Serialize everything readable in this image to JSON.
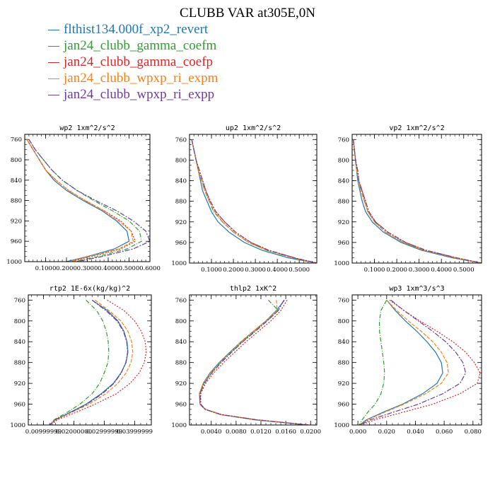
{
  "figure": {
    "title": "CLUBB VAR at305E,0N"
  },
  "series": [
    {
      "name": "flthist134.000f_xp2_revert",
      "color": "#1f77b4",
      "dash": ""
    },
    {
      "name": "jan24_clubb_gamma_coefm",
      "color": "#2ca02c",
      "dash": "6,2,1,2"
    },
    {
      "name": "jan24_clubb_gamma_coefp",
      "color": "#d62728",
      "dash": "2,2"
    },
    {
      "name": "jan24_clubb_wpxp_ri_expm",
      "color": "#ff7f0e",
      "dash": "5,2"
    },
    {
      "name": "jan24_clubb_wpxp_ri_expp",
      "color": "#6a3d9a",
      "dash": "7,2,2,2"
    }
  ],
  "chart_data": [
    {
      "type": "line",
      "title": "wp2  1xm^2/s^2",
      "xlim": [
        0,
        0.6
      ],
      "ylim": [
        750,
        1000
      ],
      "xticks": [
        0.1,
        0.2,
        0.3,
        0.4,
        0.5,
        0.6
      ],
      "xtick_labels": [
        "0.1000",
        "0.2000",
        "0.3000",
        "0.4000",
        "0.5000",
        "0.6000"
      ],
      "yticks": [
        760,
        800,
        840,
        880,
        920,
        960,
        1000
      ],
      "y": [
        760,
        780,
        800,
        820,
        840,
        860,
        880,
        900,
        920,
        940,
        960,
        975,
        990,
        1000
      ],
      "series_x": [
        [
          0.01,
          0.04,
          0.07,
          0.1,
          0.14,
          0.2,
          0.28,
          0.37,
          0.44,
          0.49,
          0.5,
          0.43,
          0.3,
          0.2
        ],
        [
          0.02,
          0.05,
          0.09,
          0.13,
          0.18,
          0.25,
          0.33,
          0.42,
          0.5,
          0.55,
          0.56,
          0.49,
          0.35,
          0.24
        ],
        [
          0.01,
          0.04,
          0.07,
          0.1,
          0.15,
          0.21,
          0.29,
          0.38,
          0.46,
          0.51,
          0.53,
          0.46,
          0.32,
          0.22
        ],
        [
          0.01,
          0.04,
          0.07,
          0.1,
          0.15,
          0.21,
          0.29,
          0.38,
          0.45,
          0.51,
          0.52,
          0.45,
          0.31,
          0.21
        ],
        [
          0.02,
          0.05,
          0.09,
          0.13,
          0.18,
          0.25,
          0.34,
          0.44,
          0.52,
          0.58,
          0.6,
          0.52,
          0.37,
          0.25
        ]
      ]
    },
    {
      "type": "line",
      "title": "up2  1xm^2/s^2",
      "xlim": [
        0,
        0.58
      ],
      "ylim": [
        750,
        1000
      ],
      "xticks": [
        0.1,
        0.2,
        0.3,
        0.4,
        0.5
      ],
      "xtick_labels": [
        "0.1000",
        "0.2000",
        "0.3000",
        "0.4000",
        "0.5000"
      ],
      "yticks": [
        760,
        800,
        840,
        880,
        920,
        960,
        1000
      ],
      "y": [
        760,
        780,
        800,
        820,
        840,
        860,
        880,
        900,
        920,
        940,
        960,
        975,
        990,
        1000
      ],
      "series_x": [
        [
          0.01,
          0.02,
          0.03,
          0.04,
          0.05,
          0.06,
          0.08,
          0.1,
          0.13,
          0.18,
          0.25,
          0.33,
          0.45,
          0.58
        ],
        [
          0.01,
          0.02,
          0.03,
          0.04,
          0.055,
          0.07,
          0.09,
          0.11,
          0.15,
          0.2,
          0.27,
          0.35,
          0.47,
          0.58
        ],
        [
          0.01,
          0.02,
          0.03,
          0.045,
          0.06,
          0.075,
          0.095,
          0.12,
          0.16,
          0.21,
          0.28,
          0.36,
          0.48,
          0.58
        ],
        [
          0.01,
          0.02,
          0.03,
          0.04,
          0.055,
          0.07,
          0.09,
          0.115,
          0.15,
          0.2,
          0.27,
          0.35,
          0.47,
          0.58
        ],
        [
          0.01,
          0.02,
          0.03,
          0.045,
          0.06,
          0.075,
          0.095,
          0.12,
          0.16,
          0.21,
          0.28,
          0.36,
          0.48,
          0.58
        ]
      ]
    },
    {
      "type": "line",
      "title": "vp2  1xm^2/s^2",
      "xlim": [
        0,
        0.58
      ],
      "ylim": [
        750,
        1000
      ],
      "xticks": [
        0.1,
        0.2,
        0.3,
        0.4,
        0.5
      ],
      "xtick_labels": [
        "0.1000",
        "0.2000",
        "0.3000",
        "0.4000",
        "0.5000"
      ],
      "yticks": [
        760,
        800,
        840,
        880,
        920,
        960,
        1000
      ],
      "y": [
        760,
        780,
        800,
        820,
        840,
        860,
        880,
        900,
        920,
        940,
        960,
        975,
        990,
        1000
      ],
      "series_x": [
        [
          0.005,
          0.01,
          0.015,
          0.02,
          0.025,
          0.035,
          0.045,
          0.06,
          0.09,
          0.14,
          0.22,
          0.31,
          0.45,
          0.58
        ],
        [
          0.005,
          0.01,
          0.015,
          0.02,
          0.03,
          0.04,
          0.055,
          0.07,
          0.1,
          0.15,
          0.23,
          0.32,
          0.46,
          0.58
        ],
        [
          0.005,
          0.01,
          0.015,
          0.025,
          0.03,
          0.045,
          0.06,
          0.075,
          0.105,
          0.16,
          0.24,
          0.33,
          0.47,
          0.58
        ],
        [
          0.005,
          0.01,
          0.015,
          0.02,
          0.03,
          0.04,
          0.055,
          0.07,
          0.1,
          0.15,
          0.23,
          0.32,
          0.46,
          0.58
        ],
        [
          0.005,
          0.01,
          0.015,
          0.025,
          0.03,
          0.045,
          0.06,
          0.075,
          0.105,
          0.16,
          0.24,
          0.33,
          0.47,
          0.58
        ]
      ]
    },
    {
      "type": "line",
      "title": "rtp2  1E-6x(kg/kg)^2",
      "xlim": [
        5e-06,
        4.55e-05
      ],
      "ylim": [
        750,
        1000
      ],
      "xticks": [
        1e-05,
        2e-05,
        3e-05,
        4e-05
      ],
      "xtick_labels": [
        "0.00999999",
        "0.02000000",
        "0.02999999",
        "0.03999999"
      ],
      "yticks": [
        760,
        800,
        840,
        880,
        920,
        960,
        1000
      ],
      "y": [
        760,
        780,
        800,
        820,
        840,
        860,
        880,
        900,
        920,
        940,
        960,
        975,
        990,
        1000
      ],
      "series_x": [
        [
          2.6e-05,
          3.1e-05,
          3.45e-05,
          3.65e-05,
          3.75e-05,
          3.78e-05,
          3.72e-05,
          3.55e-05,
          3.3e-05,
          2.9e-05,
          2.4e-05,
          1.9e-05,
          1.4e-05,
          1.2e-05
        ],
        [
          2.4e-05,
          2.75e-05,
          2.95e-05,
          3.07e-05,
          3.13e-05,
          3.15e-05,
          3.12e-05,
          3e-05,
          2.85e-05,
          2.6e-05,
          2.2e-05,
          1.8e-05,
          1.35e-05,
          1.2e-05
        ],
        [
          3.1e-05,
          3.65e-05,
          4e-05,
          4.22e-05,
          4.35e-05,
          4.38e-05,
          4.32e-05,
          4.15e-05,
          3.85e-05,
          3.4e-05,
          2.7e-05,
          2.1e-05,
          1.45e-05,
          1.25e-05
        ],
        [
          2.7e-05,
          3.15e-05,
          3.55e-05,
          3.78e-05,
          3.9e-05,
          3.94e-05,
          3.88e-05,
          3.72e-05,
          3.45e-05,
          3.05e-05,
          2.5e-05,
          1.95e-05,
          1.4e-05,
          1.2e-05
        ],
        [
          2.6e-05,
          3.05e-05,
          3.42e-05,
          3.63e-05,
          3.74e-05,
          3.77e-05,
          3.71e-05,
          3.56e-05,
          3.32e-05,
          2.94e-05,
          2.43e-05,
          1.92e-05,
          1.38e-05,
          1.2e-05
        ]
      ]
    },
    {
      "type": "line",
      "title": "thlp2  1xK^2",
      "xlim": [
        0.0005,
        0.021
      ],
      "ylim": [
        750,
        1000
      ],
      "xticks": [
        0.004,
        0.008,
        0.012,
        0.016,
        0.02
      ],
      "xtick_labels": [
        "0.0040",
        "0.0080",
        "0.0120",
        "0.0160",
        "0.0200"
      ],
      "yticks": [
        760,
        800,
        840,
        880,
        920,
        960,
        1000
      ],
      "y": [
        760,
        780,
        800,
        820,
        840,
        860,
        880,
        900,
        920,
        940,
        960,
        970,
        980,
        990,
        1000
      ],
      "series_x": [
        [
          0.0158,
          0.0145,
          0.0128,
          0.0108,
          0.0088,
          0.007,
          0.0053,
          0.0038,
          0.0027,
          0.0021,
          0.0022,
          0.003,
          0.0055,
          0.011,
          0.0195
        ],
        [
          0.0132,
          0.0148,
          0.013,
          0.011,
          0.009,
          0.0072,
          0.0055,
          0.004,
          0.0028,
          0.0022,
          0.0023,
          0.0031,
          0.0056,
          0.0112,
          0.0196
        ],
        [
          0.0162,
          0.0152,
          0.0136,
          0.0116,
          0.0096,
          0.0078,
          0.006,
          0.0044,
          0.0031,
          0.0023,
          0.0023,
          0.0031,
          0.0057,
          0.0114,
          0.0198
        ],
        [
          0.0145,
          0.0146,
          0.0128,
          0.0108,
          0.0088,
          0.0071,
          0.0054,
          0.0039,
          0.0027,
          0.0021,
          0.0022,
          0.003,
          0.0055,
          0.011,
          0.0195
        ],
        [
          0.0157,
          0.0148,
          0.013,
          0.0111,
          0.0091,
          0.0073,
          0.0056,
          0.0041,
          0.0029,
          0.0022,
          0.0022,
          0.003,
          0.0056,
          0.0112,
          0.0196
        ]
      ]
    },
    {
      "type": "line",
      "title": "wp3  1xm^3/s^3",
      "xlim": [
        -0.004,
        0.086
      ],
      "ylim": [
        750,
        1000
      ],
      "xticks": [
        0,
        0.02,
        0.04,
        0.06,
        0.08
      ],
      "xtick_labels": [
        "0.000",
        "0.020",
        "0.040",
        "0.060",
        "0.080"
      ],
      "yticks": [
        760,
        800,
        840,
        880,
        920,
        960,
        1000
      ],
      "y": [
        760,
        780,
        800,
        820,
        840,
        860,
        880,
        900,
        920,
        940,
        960,
        975,
        990,
        1000
      ],
      "series_x": [
        [
          0.02,
          0.026,
          0.033,
          0.041,
          0.048,
          0.054,
          0.058,
          0.059,
          0.055,
          0.045,
          0.031,
          0.018,
          0.006,
          0.001
        ],
        [
          0.02,
          0.016,
          0.015,
          0.015,
          0.016,
          0.017,
          0.018,
          0.0185,
          0.018,
          0.016,
          0.012,
          0.007,
          0.003,
          0.001
        ],
        [
          0.022,
          0.032,
          0.043,
          0.055,
          0.066,
          0.075,
          0.081,
          0.085,
          0.083,
          0.071,
          0.052,
          0.032,
          0.012,
          0.002
        ],
        [
          0.02,
          0.027,
          0.035,
          0.044,
          0.052,
          0.058,
          0.062,
          0.063,
          0.058,
          0.047,
          0.032,
          0.019,
          0.007,
          0.001
        ],
        [
          0.023,
          0.032,
          0.042,
          0.052,
          0.061,
          0.068,
          0.073,
          0.075,
          0.071,
          0.059,
          0.042,
          0.025,
          0.009,
          0.001
        ]
      ]
    }
  ]
}
